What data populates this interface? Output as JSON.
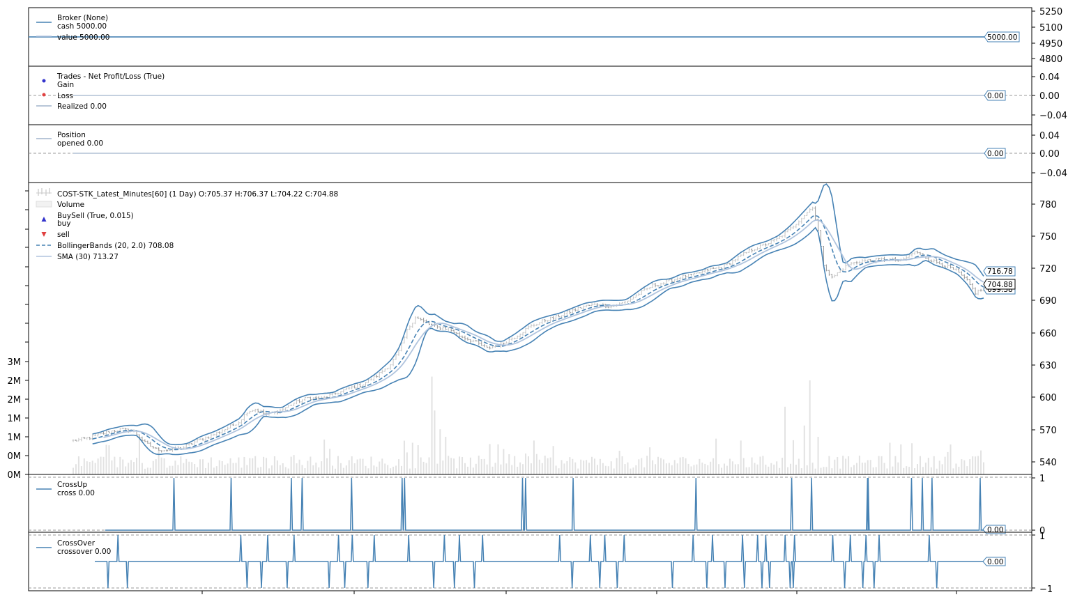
{
  "chart_data": [
    {
      "type": "line",
      "panel": "broker",
      "legend": [
        "Broker (None)",
        "cash 5000.00",
        "value 5000.00"
      ],
      "series": [
        {
          "name": "cash",
          "values": [
            5000,
            5000
          ]
        },
        {
          "name": "value",
          "values": [
            5000,
            5000
          ]
        }
      ],
      "y_ticks": [
        "5250",
        "5100",
        "4950",
        "4800"
      ],
      "ylim": [
        4750,
        5270
      ],
      "last_value_tag": "5000.00",
      "colors": {
        "cash": "#4682b4",
        "value": "#b0c4de"
      }
    },
    {
      "type": "scatter",
      "panel": "trades",
      "legend": [
        "Trades - Net Profit/Loss (True)",
        "Gain",
        "Loss",
        "Realized 0.00"
      ],
      "series": [
        {
          "name": "Realized",
          "values": [
            0,
            0
          ]
        }
      ],
      "y_ticks": [
        "0.04",
        "0.00",
        "−0.04"
      ],
      "ylim": [
        -0.06,
        0.06
      ],
      "last_value_tag": "0.00",
      "colors": {
        "gain": "#3333cc",
        "loss": "#e04040",
        "realized": "#a0b4cc"
      }
    },
    {
      "type": "line",
      "panel": "position",
      "legend": [
        "Position",
        "opened 0.00"
      ],
      "series": [
        {
          "name": "opened",
          "values": [
            0,
            0
          ]
        }
      ],
      "y_ticks": [
        "0.04",
        "0.00",
        "−0.04"
      ],
      "ylim": [
        -0.06,
        0.06
      ],
      "last_value_tag": "0.00",
      "colors": {
        "opened": "#a0b4cc"
      }
    },
    {
      "type": "line",
      "panel": "price",
      "legend": [
        "COST-STK_Latest_Minutes[60] (1 Day) O:705.37 H:706.37 L:704.22 C:704.88",
        "Volume",
        "BuySell (True, 0.015)",
        "buy",
        "sell",
        "BollingerBands (20, 2.0) 708.08",
        "SMA (30) 713.27"
      ],
      "y_ticks": [
        "780",
        "750",
        "720",
        "690",
        "660",
        "630",
        "600",
        "570",
        "540"
      ],
      "volume_ticks": [
        "3M",
        "2M",
        "2M",
        "1M",
        "1M",
        "0M",
        "0M"
      ],
      "ylim": [
        528,
        806
      ],
      "volume_max": 3.5,
      "value_tags": [
        "716.78",
        "704.88",
        "699.38"
      ],
      "price_anchors": [
        [
          0,
          560
        ],
        [
          6,
          563
        ],
        [
          12,
          568
        ],
        [
          17,
          571
        ],
        [
          22,
          569
        ],
        [
          26,
          558
        ],
        [
          30,
          552
        ],
        [
          35,
          551
        ],
        [
          40,
          554
        ],
        [
          45,
          560
        ],
        [
          50,
          565
        ],
        [
          55,
          571
        ],
        [
          60,
          578
        ],
        [
          63,
          588
        ],
        [
          66,
          590
        ],
        [
          70,
          585
        ],
        [
          75,
          589
        ],
        [
          80,
          596
        ],
        [
          85,
          601
        ],
        [
          90,
          600
        ],
        [
          95,
          605
        ],
        [
          100,
          610
        ],
        [
          105,
          614
        ],
        [
          110,
          622
        ],
        [
          115,
          633
        ],
        [
          118,
          645
        ],
        [
          121,
          665
        ],
        [
          124,
          678
        ],
        [
          128,
          672
        ],
        [
          132,
          668
        ],
        [
          136,
          667
        ],
        [
          140,
          660
        ],
        [
          145,
          655
        ],
        [
          150,
          648
        ],
        [
          155,
          652
        ],
        [
          160,
          659
        ],
        [
          165,
          668
        ],
        [
          170,
          674
        ],
        [
          175,
          678
        ],
        [
          180,
          683
        ],
        [
          185,
          688
        ],
        [
          190,
          690
        ],
        [
          195,
          688
        ],
        [
          200,
          692
        ],
        [
          205,
          700
        ],
        [
          210,
          708
        ],
        [
          215,
          711
        ],
        [
          220,
          716
        ],
        [
          225,
          718
        ],
        [
          230,
          723
        ],
        [
          235,
          725
        ],
        [
          240,
          733
        ],
        [
          245,
          741
        ],
        [
          250,
          746
        ],
        [
          255,
          752
        ],
        [
          260,
          762
        ],
        [
          265,
          775
        ],
        [
          268,
          783
        ],
        [
          270,
          760
        ],
        [
          272,
          728
        ],
        [
          275,
          715
        ],
        [
          278,
          722
        ],
        [
          281,
          728
        ],
        [
          285,
          731
        ],
        [
          290,
          732
        ],
        [
          295,
          733
        ],
        [
          300,
          731
        ],
        [
          305,
          740
        ],
        [
          310,
          733
        ],
        [
          315,
          728
        ],
        [
          320,
          722
        ],
        [
          324,
          712
        ],
        [
          327,
          701
        ],
        [
          330,
          705
        ]
      ],
      "colors": {
        "band": "#4682b4",
        "sma": "#b0c4de",
        "bar": "#a8a8a8",
        "volume": "#e0e0e0"
      }
    },
    {
      "type": "line",
      "panel": "crossup",
      "legend": [
        "CrossUp",
        "cross 0.00"
      ],
      "y_ticks": [
        "1",
        "0"
      ],
      "ylim": [
        -0.05,
        1.05
      ],
      "last_value_tag": "0.00",
      "spike_positions": [
        0.114,
        0.209,
        0.309,
        0.327,
        0.409,
        0.493,
        0.497,
        0.693,
        0.698,
        0.777,
        0.981,
        1.14,
        1.173,
        1.266,
        1.267,
        1.339,
        1.357,
        1.373,
        1.453
      ],
      "colors": {
        "line": "#4682b4"
      }
    },
    {
      "type": "line",
      "panel": "crossover",
      "legend": [
        "CrossOver",
        "crossover 0.00"
      ],
      "y_ticks": [
        "1",
        "−1"
      ],
      "ylim": [
        -1.2,
        1.2
      ],
      "last_value_tag": "0.00",
      "events": [
        [
          0.021,
          -1
        ],
        [
          0.037,
          1
        ],
        [
          0.052,
          -1
        ],
        [
          0.233,
          1
        ],
        [
          0.243,
          -1
        ],
        [
          0.266,
          -1
        ],
        [
          0.276,
          1
        ],
        [
          0.307,
          -1
        ],
        [
          0.318,
          1
        ],
        [
          0.374,
          -1
        ],
        [
          0.389,
          1
        ],
        [
          0.399,
          -1
        ],
        [
          0.411,
          1
        ],
        [
          0.436,
          -1
        ],
        [
          0.446,
          1
        ],
        [
          0.501,
          1
        ],
        [
          0.541,
          -1
        ],
        [
          0.558,
          1
        ],
        [
          0.574,
          -1
        ],
        [
          0.582,
          1
        ],
        [
          0.606,
          -1
        ],
        [
          0.619,
          1
        ],
        [
          0.742,
          1
        ],
        [
          0.762,
          -1
        ],
        [
          0.791,
          1
        ],
        [
          0.806,
          -1
        ],
        [
          0.814,
          1
        ],
        [
          0.834,
          -1
        ],
        [
          0.845,
          1
        ],
        [
          0.922,
          -1
        ],
        [
          0.955,
          1
        ],
        [
          0.977,
          -1
        ],
        [
          0.986,
          1
        ],
        [
          1.006,
          -1
        ],
        [
          1.034,
          1
        ],
        [
          1.037,
          -1
        ],
        [
          1.058,
          1
        ],
        [
          1.065,
          -1
        ],
        [
          1.071,
          1
        ],
        [
          1.077,
          -1
        ],
        [
          1.102,
          1
        ],
        [
          1.11,
          -1
        ],
        [
          1.115,
          -1
        ],
        [
          1.117,
          1
        ],
        [
          1.178,
          1
        ],
        [
          1.197,
          -1
        ],
        [
          1.206,
          1
        ],
        [
          1.226,
          -1
        ],
        [
          1.231,
          1
        ],
        [
          1.244,
          -1
        ],
        [
          1.252,
          1
        ],
        [
          1.332,
          1
        ],
        [
          1.344,
          -1
        ]
      ],
      "colors": {
        "line": "#4682b4"
      }
    }
  ],
  "colors": {
    "accent": "#4682b4",
    "light": "#b0c4de",
    "grid_dash": "#999999",
    "frame": "#000000"
  }
}
